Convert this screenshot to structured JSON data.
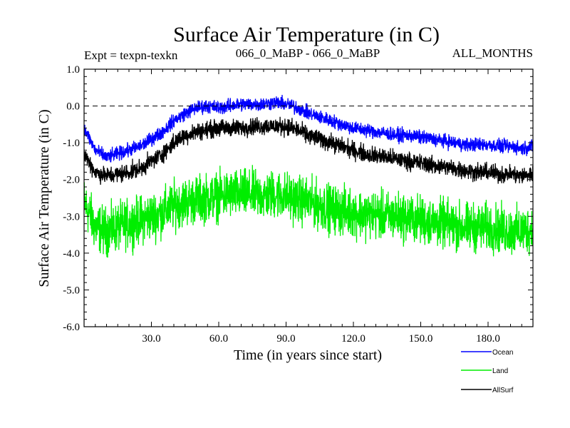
{
  "chart_data": {
    "type": "line",
    "title": "Surface Air Temperature (in C)",
    "experiment_label": "Expt = texpn-texkn",
    "subtitle": "066_0_MaBP - 066_0_MaBP",
    "months_label": "ALL_MONTHS",
    "xlabel": "Time (in years since start)",
    "ylabel": "Surface Air Temperature (in C)",
    "xlim": [
      0,
      200
    ],
    "ylim": [
      -6.0,
      1.0
    ],
    "x_ticks": [
      30,
      60,
      90,
      120,
      150,
      180
    ],
    "x_tick_labels": [
      "30.0",
      "60.0",
      "90.0",
      "120.0",
      "150.0",
      "180.0"
    ],
    "y_ticks": [
      1.0,
      0.0,
      -1.0,
      -2.0,
      -3.0,
      -4.0,
      -5.0,
      -6.0
    ],
    "y_tick_labels": [
      "1.0",
      "0.0",
      "-1.0",
      "-2.0",
      "-3.0",
      "-4.0",
      "-5.0",
      "-6.0"
    ],
    "reference_line": {
      "y": 0.0,
      "style": "dashed"
    },
    "series": [
      {
        "name": "Ocean",
        "color": "#0000ff",
        "x": [
          0,
          5,
          10,
          15,
          20,
          25,
          30,
          35,
          40,
          45,
          50,
          55,
          60,
          65,
          70,
          75,
          80,
          85,
          90,
          95,
          100,
          105,
          110,
          115,
          120,
          125,
          130,
          135,
          140,
          145,
          150,
          155,
          160,
          165,
          170,
          175,
          180,
          185,
          190,
          195,
          200
        ],
        "values": [
          -0.6,
          -1.2,
          -1.4,
          -1.3,
          -1.2,
          -1.1,
          -0.9,
          -0.7,
          -0.4,
          -0.2,
          -0.05,
          0.0,
          -0.05,
          0.0,
          0.05,
          0.05,
          0.05,
          0.1,
          0.05,
          -0.05,
          -0.2,
          -0.3,
          -0.4,
          -0.5,
          -0.6,
          -0.65,
          -0.7,
          -0.75,
          -0.8,
          -0.8,
          -0.85,
          -0.9,
          -0.95,
          -1.0,
          -1.05,
          -1.05,
          -1.05,
          -1.1,
          -1.1,
          -1.15,
          -1.1
        ]
      },
      {
        "name": "Land",
        "color": "#00ee00",
        "x": [
          0,
          5,
          10,
          15,
          20,
          25,
          30,
          35,
          40,
          45,
          50,
          55,
          60,
          65,
          70,
          75,
          80,
          85,
          90,
          95,
          100,
          105,
          110,
          115,
          120,
          125,
          130,
          135,
          140,
          145,
          150,
          155,
          160,
          165,
          170,
          175,
          180,
          185,
          190,
          195,
          200
        ],
        "values": [
          -2.6,
          -3.3,
          -3.4,
          -3.3,
          -3.2,
          -3.1,
          -3.0,
          -2.9,
          -2.7,
          -2.6,
          -2.55,
          -2.5,
          -2.45,
          -2.4,
          -2.4,
          -2.4,
          -2.45,
          -2.4,
          -2.45,
          -2.55,
          -2.6,
          -2.7,
          -2.8,
          -2.85,
          -2.9,
          -2.95,
          -2.95,
          -3.0,
          -3.0,
          -3.05,
          -3.1,
          -3.15,
          -3.2,
          -3.25,
          -3.3,
          -3.3,
          -3.3,
          -3.35,
          -3.4,
          -3.4,
          -3.35
        ]
      },
      {
        "name": "AllSurf",
        "color": "#000000",
        "x": [
          0,
          5,
          10,
          15,
          20,
          25,
          30,
          35,
          40,
          45,
          50,
          55,
          60,
          65,
          70,
          75,
          80,
          85,
          90,
          95,
          100,
          105,
          110,
          115,
          120,
          125,
          130,
          135,
          140,
          145,
          150,
          155,
          160,
          165,
          170,
          175,
          180,
          185,
          190,
          195,
          200
        ],
        "values": [
          -1.3,
          -1.8,
          -1.9,
          -1.85,
          -1.8,
          -1.7,
          -1.5,
          -1.3,
          -1.0,
          -0.8,
          -0.7,
          -0.65,
          -0.6,
          -0.6,
          -0.6,
          -0.55,
          -0.55,
          -0.55,
          -0.55,
          -0.65,
          -0.8,
          -0.9,
          -1.0,
          -1.1,
          -1.2,
          -1.3,
          -1.35,
          -1.4,
          -1.45,
          -1.5,
          -1.55,
          -1.6,
          -1.65,
          -1.7,
          -1.75,
          -1.8,
          -1.8,
          -1.85,
          -1.85,
          -1.9,
          -1.85
        ]
      }
    ],
    "legend": {
      "placement": "bottom-right",
      "entries": [
        "Ocean",
        "Land",
        "AllSurf"
      ]
    }
  }
}
